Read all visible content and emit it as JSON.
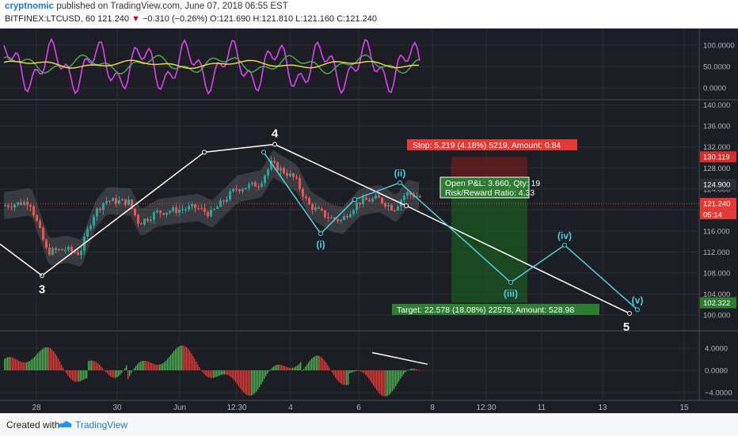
{
  "header": {
    "author": "cryptnomic",
    "published_text": "published on TradingView.com, June 07, 2018 06:55 EST",
    "symbol": "BITFINEX:LTCUSD, 60",
    "last": "121.240",
    "change": "−0.310 (−0.26%)",
    "ohlc": "O:121.690  H:121.810  L:121.160  C:121.240"
  },
  "footer": {
    "created_with": "Created with",
    "brand": "TradingView"
  },
  "colors": {
    "background": "#1c1e24",
    "candle_up": "#26a69a",
    "candle_down": "#ef5350",
    "wave_white": "#ffffff",
    "wave_cyan": "#4dd0e1",
    "stop_zone": "#8b1a1a",
    "target_zone": "#1b5e20",
    "oscillator_magenta": "#e040fb",
    "oscillator_green": "#4caf50",
    "oscillator_yellow": "#f4e04d"
  },
  "chart_data": {
    "type": "candlestick",
    "x_ticks": [
      "28",
      "30",
      "Jun",
      "12:30",
      "4",
      "6",
      "8",
      "12:30",
      "11",
      "13",
      "15"
    ],
    "main_pane": {
      "y_ticks": [
        140,
        136,
        132,
        128,
        124,
        120,
        116,
        112,
        108,
        104,
        100
      ],
      "ylim": [
        98.5,
        141
      ],
      "price_labels": [
        {
          "value": 130.119,
          "text": "130.119",
          "kind": "stop"
        },
        {
          "value": 124.9,
          "text": "124.900",
          "kind": "entry"
        },
        {
          "value": 121.24,
          "text": "121.240",
          "kind": "last"
        },
        {
          "value": 102.322,
          "text": "102.322",
          "kind": "target"
        }
      ],
      "countdown": "05:14",
      "elliott_primary": [
        {
          "x": 53,
          "price": 107.5,
          "label": "3"
        },
        {
          "x": 258,
          "price": 131.0,
          "label": ""
        },
        {
          "x": 347,
          "price": 132.5,
          "label": "4"
        },
        {
          "x": 513,
          "price": 120.8,
          "label": ""
        },
        {
          "x": 795,
          "price": 100.3,
          "label": "5"
        }
      ],
      "elliott_secondary": [
        {
          "x": 333,
          "price": 131.0,
          "label": ""
        },
        {
          "x": 405,
          "price": 115.5,
          "label": "(i)"
        },
        {
          "x": 448,
          "price": 122.0,
          "label": ""
        },
        {
          "x": 505,
          "price": 125.2,
          "label": "(ii)"
        },
        {
          "x": 645,
          "price": 106.2,
          "label": "(iii)"
        },
        {
          "x": 713,
          "price": 113.3,
          "label": "(iv)"
        },
        {
          "x": 805,
          "price": 101.0,
          "label": "(v)"
        }
      ],
      "position": {
        "entry": 124.9,
        "stop": 130.119,
        "target": 102.322,
        "stop_text": "Stop: 5.219 (4.18%) 5219, Amount: 0.84",
        "pnl_text": "Open P&L: 3.660, Qty: 19",
        "rr_text": "Risk/Reward Ratio: 4.33",
        "target_text": "Target: 22.578 (18.08%) 22578, Amount: 528.98"
      }
    },
    "oscillator_pane": {
      "y_ticks": [
        "100.0000",
        "50.0000",
        "0.0000"
      ]
    },
    "histogram_pane": {
      "y_ticks": [
        "4.0000",
        "0.0000",
        "−4.0000"
      ]
    }
  }
}
